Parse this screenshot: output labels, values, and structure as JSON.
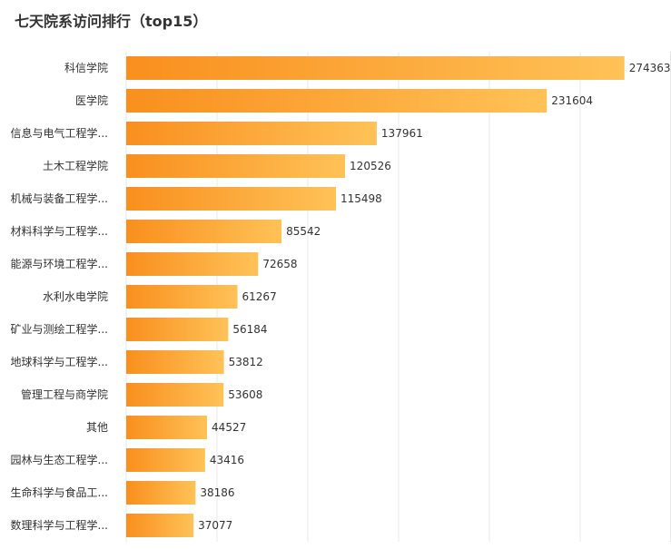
{
  "chart_data": {
    "type": "bar",
    "orientation": "horizontal",
    "title": "七天院系访问排行（top15）",
    "xlabel": "",
    "ylabel": "",
    "grid": true,
    "xlim": [
      0,
      300000
    ],
    "categories": [
      "科信学院",
      "医学院",
      "信息与电气工程学...",
      "土木工程学院",
      "机械与装备工程学...",
      "材料科学与工程学...",
      "能源与环境工程学...",
      "水利水电学院",
      "矿业与测绘工程学...",
      "地球科学与工程学...",
      "管理工程与商学院",
      "其他",
      "园林与生态工程学...",
      "生命科学与食品工...",
      "数理科学与工程学..."
    ],
    "values": [
      274363,
      231604,
      137961,
      120526,
      115498,
      85542,
      72658,
      61267,
      56184,
      53812,
      53608,
      44527,
      43416,
      38186,
      37077
    ],
    "colors": {
      "bar_start": "#F98F1E",
      "bar_end": "#FFC257",
      "grid": "#E8E8E8",
      "text": "#333333"
    }
  }
}
